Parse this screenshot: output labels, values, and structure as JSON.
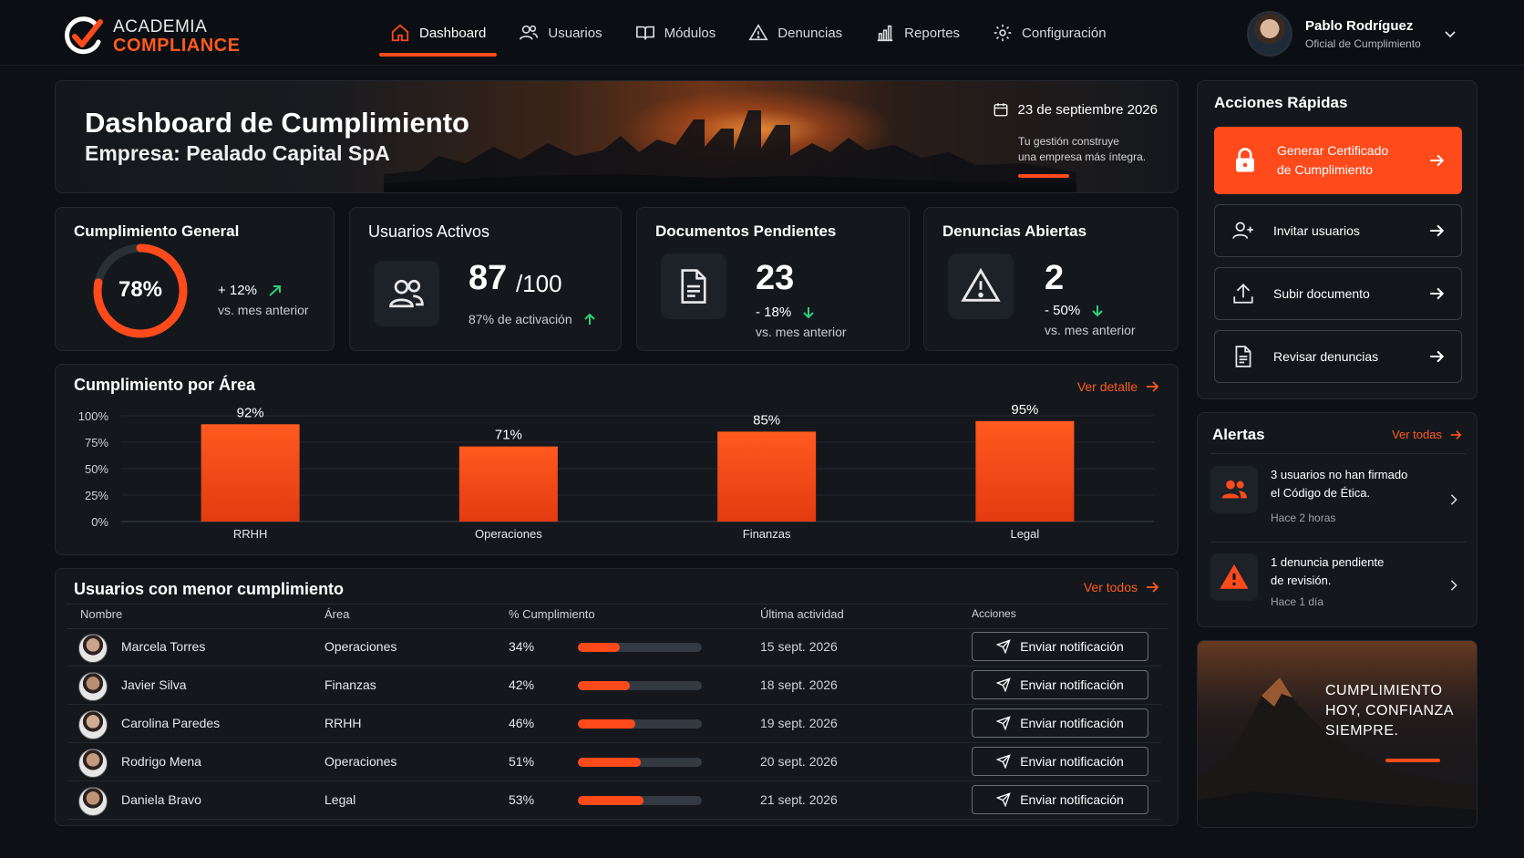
{
  "brand": {
    "line1": "ACADEMIA",
    "line2": "COMPLIANCE",
    "accent": "#ff4a1c"
  },
  "nav": [
    {
      "label": "Dashboard",
      "icon": "home-icon",
      "active": true
    },
    {
      "label": "Usuarios",
      "icon": "users-icon"
    },
    {
      "label": "Módulos",
      "icon": "book-icon"
    },
    {
      "label": "Denuncias",
      "icon": "warning-icon"
    },
    {
      "label": "Reportes",
      "icon": "bar-chart-icon"
    },
    {
      "label": "Configuración",
      "icon": "gear-icon"
    }
  ],
  "user": {
    "name": "Pablo Rodríguez",
    "role": "Oficial de Cumplimiento"
  },
  "hero": {
    "title": "Dashboard de Cumplimiento",
    "company": "Empresa: Pealado Capital SpA",
    "date": "23 de septiembre 2026",
    "quote1": "Tu gestión construye",
    "quote2": "una empresa más íntegra."
  },
  "stats": {
    "general": {
      "title": "Cumplimiento General",
      "value": "78%",
      "percent": 78,
      "delta": "+ 12%",
      "note": "vs. mes anterior"
    },
    "users": {
      "title": "Usuarios Activos",
      "value": "87",
      "total": "/100",
      "note": "87% de activación"
    },
    "docs": {
      "title": "Documentos Pendientes",
      "value": "23",
      "delta": "- 18%",
      "note": "vs. mes anterior"
    },
    "reports": {
      "title": "Denuncias Abiertas",
      "value": "2",
      "delta": "- 50%",
      "note": "vs. mes anterior"
    }
  },
  "area": {
    "title": "Cumplimiento por Área",
    "link": "Ver detalle"
  },
  "chart_data": {
    "type": "bar",
    "categories": [
      "RRHH",
      "Operaciones",
      "Finanzas",
      "Legal"
    ],
    "values": [
      92,
      71,
      85,
      95
    ],
    "value_labels": [
      "92%",
      "71%",
      "85%",
      "95%"
    ],
    "y_ticks": [
      "100%",
      "75%",
      "50%",
      "25%",
      "0%"
    ],
    "ylim": [
      0,
      100
    ],
    "grid": true
  },
  "low": {
    "title": "Usuarios con menor cumplimiento",
    "link": "Ver todos",
    "headers": [
      "Nombre",
      "Área",
      "% Cumplimiento",
      "Última actividad",
      "Acciones"
    ],
    "rows": [
      {
        "name": "Marcela Torres",
        "area": "Operaciones",
        "pct": "34%",
        "value": 34,
        "date": "15 sept. 2026",
        "action": "Enviar notificación"
      },
      {
        "name": "Javier Silva",
        "area": "Finanzas",
        "pct": "42%",
        "value": 42,
        "date": "18 sept. 2026",
        "action": "Enviar notificación"
      },
      {
        "name": "Carolina Paredes",
        "area": "RRHH",
        "pct": "46%",
        "value": 46,
        "date": "19 sept. 2026",
        "action": "Enviar notificación"
      },
      {
        "name": "Rodrigo Mena",
        "area": "Operaciones",
        "pct": "51%",
        "value": 51,
        "date": "20 sept. 2026",
        "action": "Enviar notificación"
      },
      {
        "name": "Daniela Bravo",
        "area": "Legal",
        "pct": "53%",
        "value": 53,
        "date": "21 sept. 2026",
        "action": "Enviar notificación"
      }
    ]
  },
  "quick": {
    "title": "Acciones Rápidas",
    "primary1": "Generar Certificado",
    "primary2": "de Cumplimiento",
    "invite": "Invitar usuarios",
    "upload": "Subir documento",
    "review": "Revisar denuncias"
  },
  "alerts": {
    "title": "Alertas",
    "link": "Ver todas",
    "items": [
      {
        "line1": "3 usuarios no han firmado",
        "line2": "el Código de Ética.",
        "time": "Hace 2 horas"
      },
      {
        "line1": "1 denuncia pendiente",
        "line2": "de revisión.",
        "time": "Hace 1 día"
      }
    ]
  },
  "promo": {
    "l1": "CUMPLIMIENTO",
    "l2": "HOY, CONFIANZA",
    "l3": "SIEMPRE."
  }
}
